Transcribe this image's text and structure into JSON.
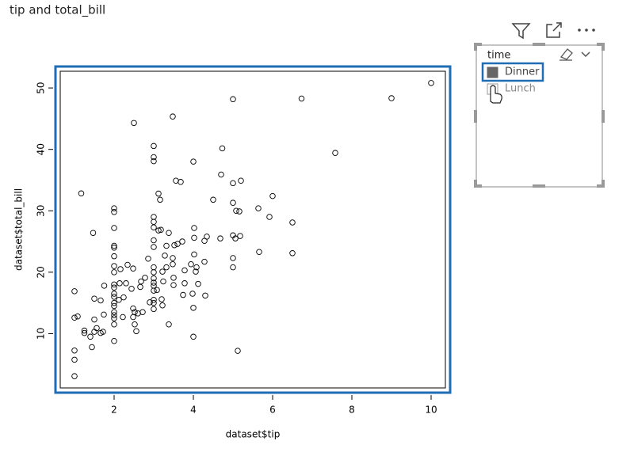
{
  "header": {
    "title": "tip and total_bill"
  },
  "chart_data": {
    "type": "scatter",
    "x_label": "dataset$tip",
    "y_label": "dataset$total_bill",
    "color": "#000000",
    "xlim": [
      0.64,
      10.36
    ],
    "ylim": [
      1.16,
      52.72
    ],
    "xticks": [
      2,
      4,
      6,
      8,
      10
    ],
    "yticks": [
      10,
      20,
      30,
      40,
      50
    ],
    "x": [
      10,
      9,
      6.73,
      5,
      2.5,
      3.48,
      3,
      3,
      3,
      4,
      4.73,
      7.58,
      1.17,
      6,
      1,
      1,
      1,
      1,
      1,
      1.08,
      1.25,
      1.25,
      1.4,
      1.44,
      1.5,
      1.5,
      1.56,
      1.5,
      1.66,
      1.47,
      1.66,
      1.72,
      1.74,
      1.75,
      2,
      2,
      2,
      2,
      2,
      2,
      2,
      2,
      2,
      2,
      2,
      2,
      2,
      2,
      2,
      2,
      2,
      2,
      2,
      2.12,
      2.14,
      2.16,
      2.22,
      2.24,
      2.3,
      2.34,
      2.44,
      2.48,
      2.48,
      2.52,
      2.52,
      2.48,
      2.56,
      2.6,
      2.66,
      2.68,
      2.72,
      2.78,
      2.86,
      2.9,
      3,
      3,
      3,
      3,
      3,
      3,
      3,
      3,
      3,
      3,
      3,
      3,
      3,
      3,
      3.08,
      3.12,
      3.16,
      3.12,
      3.18,
      3.22,
      3.2,
      3.22,
      3.24,
      3.28,
      3.32,
      3.38,
      3.32,
      3.38,
      3.48,
      3.48,
      3.5,
      3.5,
      3.52,
      3.56,
      3.6,
      3.68,
      3.72,
      3.74,
      3.78,
      3.78,
      3.94,
      3.98,
      4,
      4,
      4.02,
      4.02,
      4.02,
      4.06,
      4.08,
      4.12,
      4.28,
      4.28,
      4.34,
      4.3,
      4.5,
      4.68,
      4.7,
      5,
      5,
      5,
      5,
      5,
      5.06,
      5.08,
      5.16,
      5.18,
      5.2,
      5.12,
      5.64,
      5.66,
      5.92,
      6.5,
      6.5
    ],
    "y": [
      50.81,
      48.33,
      48.27,
      48.17,
      44.3,
      45.35,
      40.55,
      38.73,
      38.07,
      38.01,
      40.17,
      39.42,
      32.83,
      32.4,
      3.07,
      5.75,
      7.25,
      12.6,
      16.9,
      12.8,
      10.5,
      10.1,
      9.5,
      7.8,
      10.3,
      12.3,
      10.9,
      15.7,
      15.4,
      26.4,
      10.1,
      10.3,
      13.1,
      17.8,
      8.8,
      11.5,
      12.5,
      13,
      13.5,
      14.5,
      15,
      16,
      16.5,
      17.5,
      18,
      20,
      21,
      22.6,
      24,
      24.3,
      27.2,
      29.8,
      30.4,
      15.5,
      18.2,
      20.5,
      12.7,
      15.9,
      18.2,
      21.2,
      17.3,
      12.7,
      14.1,
      13.5,
      11.5,
      20.6,
      10.4,
      13.3,
      17.6,
      18.5,
      13.5,
      19.1,
      22.2,
      15.1,
      14,
      15,
      15.5,
      17,
      17.8,
      18.3,
      19,
      20,
      20.8,
      24.1,
      25.2,
      27.3,
      28.2,
      29,
      17.1,
      32.8,
      31.8,
      26.8,
      26.9,
      20.1,
      15.6,
      14.6,
      18.5,
      22.7,
      24.3,
      26.4,
      20.8,
      11.5,
      22.3,
      21.3,
      19.1,
      17.9,
      24.4,
      34.9,
      24.6,
      34.7,
      25,
      16.3,
      18.2,
      20.3,
      21.3,
      16.5,
      9.5,
      14.2,
      22.9,
      25.6,
      27.2,
      20.1,
      20.8,
      18.1,
      21.7,
      25.1,
      25.8,
      16.2,
      31.8,
      25.5,
      35.9,
      26,
      22.3,
      20.8,
      31.3,
      34.5,
      25.5,
      30,
      29.9,
      25.9,
      34.9,
      7.2,
      30.4,
      23.3,
      29,
      28.1,
      23.1
    ]
  },
  "slicer": {
    "title": "time",
    "items": [
      "Dinner",
      "Lunch"
    ],
    "selected": 0
  }
}
